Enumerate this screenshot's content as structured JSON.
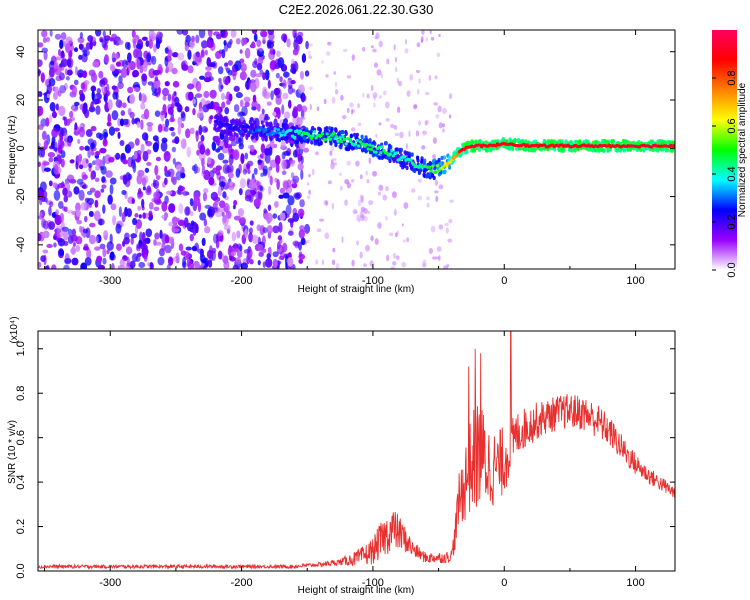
{
  "title": "C2E2.2026.061.22.30.G30",
  "chart_data": [
    {
      "type": "heatmap",
      "title": "C2E2.2026.061.22.30.G30",
      "xlabel": "Height of straight line (km)",
      "ylabel": "Frequency (Hz)",
      "xlim": [
        -355,
        130
      ],
      "ylim": [
        -50,
        49
      ],
      "xticks": [
        -300,
        -200,
        -100,
        0,
        100
      ],
      "yticks": [
        -40,
        -20,
        0,
        20,
        40
      ],
      "colorbar": {
        "label": "Normalized spectral amplitude",
        "range": [
          0.0,
          1.0
        ],
        "ticks": [
          "0.0",
          "0.2",
          "0.4",
          "0.6",
          "0.8"
        ],
        "colors": [
          "#ffffff",
          "#9a00ff",
          "#0000ff",
          "#00ffff",
          "#00ff00",
          "#ffff00",
          "#ff8000",
          "#ff0000",
          "#ff0060"
        ]
      },
      "noise_region": {
        "x_range": [
          -355,
          -150
        ],
        "frequency_range": [
          -50,
          49
        ],
        "amplitude_range": [
          0.05,
          0.25
        ]
      },
      "signal_track": {
        "x": [
          -220,
          -200,
          -180,
          -160,
          -150,
          -140,
          -130,
          -120,
          -110,
          -100,
          -90,
          -80,
          -70,
          -60,
          -55,
          -50,
          -45,
          -40,
          -35,
          -30,
          -25,
          -20,
          -10,
          0,
          20,
          50,
          80,
          100,
          130
        ],
        "frequency": [
          10,
          8,
          7,
          6,
          6,
          5,
          5,
          3,
          2,
          0,
          -1,
          -4,
          -6,
          -8,
          -9,
          -8,
          -7,
          -5,
          -2,
          0,
          1,
          1,
          1,
          2,
          1,
          1,
          1,
          1,
          1
        ],
        "amplitude": [
          0.2,
          0.25,
          0.3,
          0.4,
          0.45,
          0.45,
          0.45,
          0.45,
          0.45,
          0.45,
          0.45,
          0.4,
          0.4,
          0.45,
          0.5,
          0.55,
          0.6,
          0.7,
          0.8,
          0.9,
          0.9,
          0.9,
          0.9,
          0.9,
          0.9,
          0.9,
          0.9,
          0.9,
          0.9
        ]
      }
    },
    {
      "type": "line",
      "xlabel": "Height of straight line (km)",
      "ylabel": "SNR (10 * v/v)",
      "y_multiplier": "(x10⁴)",
      "xlim": [
        -355,
        130
      ],
      "ylim": [
        0,
        1.08
      ],
      "xticks": [
        -300,
        -200,
        -100,
        0,
        100
      ],
      "yticks": [
        "0.0",
        "0.2",
        "0.4",
        "0.6",
        "0.8",
        "1.0"
      ],
      "series": [
        {
          "name": "SNR",
          "color": "#e8312f",
          "x": [
            -355,
            -300,
            -250,
            -200,
            -160,
            -140,
            -125,
            -110,
            -100,
            -95,
            -90,
            -85,
            -80,
            -75,
            -70,
            -65,
            -60,
            -55,
            -50,
            -45,
            -40,
            -37,
            -35,
            -30,
            -25,
            -20,
            -15,
            -10,
            -5,
            0,
            5,
            10,
            20,
            30,
            40,
            50,
            60,
            70,
            80,
            90,
            100,
            110,
            120,
            130
          ],
          "y": [
            0.02,
            0.02,
            0.02,
            0.02,
            0.02,
            0.03,
            0.04,
            0.06,
            0.09,
            0.13,
            0.16,
            0.19,
            0.17,
            0.14,
            0.1,
            0.08,
            0.06,
            0.06,
            0.06,
            0.06,
            0.07,
            0.18,
            0.3,
            0.4,
            0.48,
            0.53,
            0.5,
            0.46,
            0.47,
            0.5,
            0.56,
            0.62,
            0.66,
            0.69,
            0.71,
            0.72,
            0.71,
            0.68,
            0.63,
            0.55,
            0.48,
            0.43,
            0.39,
            0.35
          ],
          "noise_amplitude": [
            0.008,
            0.008,
            0.008,
            0.008,
            0.008,
            0.01,
            0.015,
            0.04,
            0.06,
            0.08,
            0.09,
            0.1,
            0.08,
            0.06,
            0.04,
            0.03,
            0.025,
            0.025,
            0.025,
            0.025,
            0.03,
            0.08,
            0.12,
            0.18,
            0.22,
            0.26,
            0.22,
            0.18,
            0.16,
            0.16,
            0.12,
            0.1,
            0.09,
            0.08,
            0.08,
            0.08,
            0.08,
            0.08,
            0.07,
            0.06,
            0.05,
            0.04,
            0.035,
            0.03
          ],
          "spikes": [
            {
              "x": -22,
              "y": 1.0
            },
            {
              "x": -18,
              "y": 0.98
            },
            {
              "x": 5,
              "y": 1.08
            },
            {
              "x": -27,
              "y": 0.92
            }
          ]
        }
      ]
    }
  ]
}
